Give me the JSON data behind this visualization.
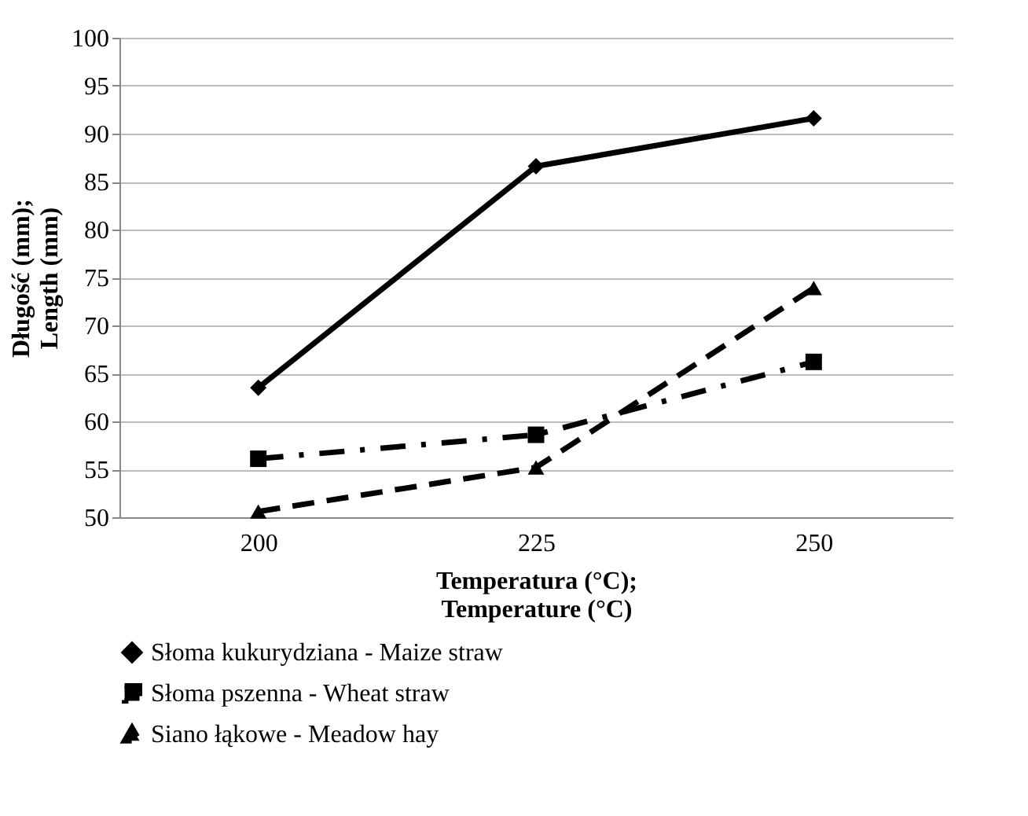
{
  "chart_data": {
    "type": "line",
    "xlabel": "Temperatura (°C);\nTemperature (°C)",
    "ylabel": "Długość (mm);\nLength (mm)",
    "categories": [
      "200",
      "225",
      "250"
    ],
    "ylim": [
      50,
      100
    ],
    "yticks": [
      50,
      55,
      60,
      65,
      70,
      75,
      80,
      85,
      90,
      95,
      100
    ],
    "grid": "y",
    "legend": "bottom",
    "series": [
      {
        "name": "Słoma kukurydziana - Maize straw",
        "color": "#000000",
        "marker": "diamond",
        "line_style": "solid",
        "values": [
          63.5,
          86.6,
          91.6
        ]
      },
      {
        "name": "Słoma pszenna - Wheat straw",
        "color": "#000000",
        "marker": "square",
        "line_style": "dashdot",
        "values": [
          56.1,
          58.6,
          66.2
        ]
      },
      {
        "name": "Siano łąkowe - Meadow hay",
        "color": "#000000",
        "marker": "triangle",
        "line_style": "dashed",
        "values": [
          50.6,
          55.2,
          73.9
        ]
      }
    ]
  }
}
